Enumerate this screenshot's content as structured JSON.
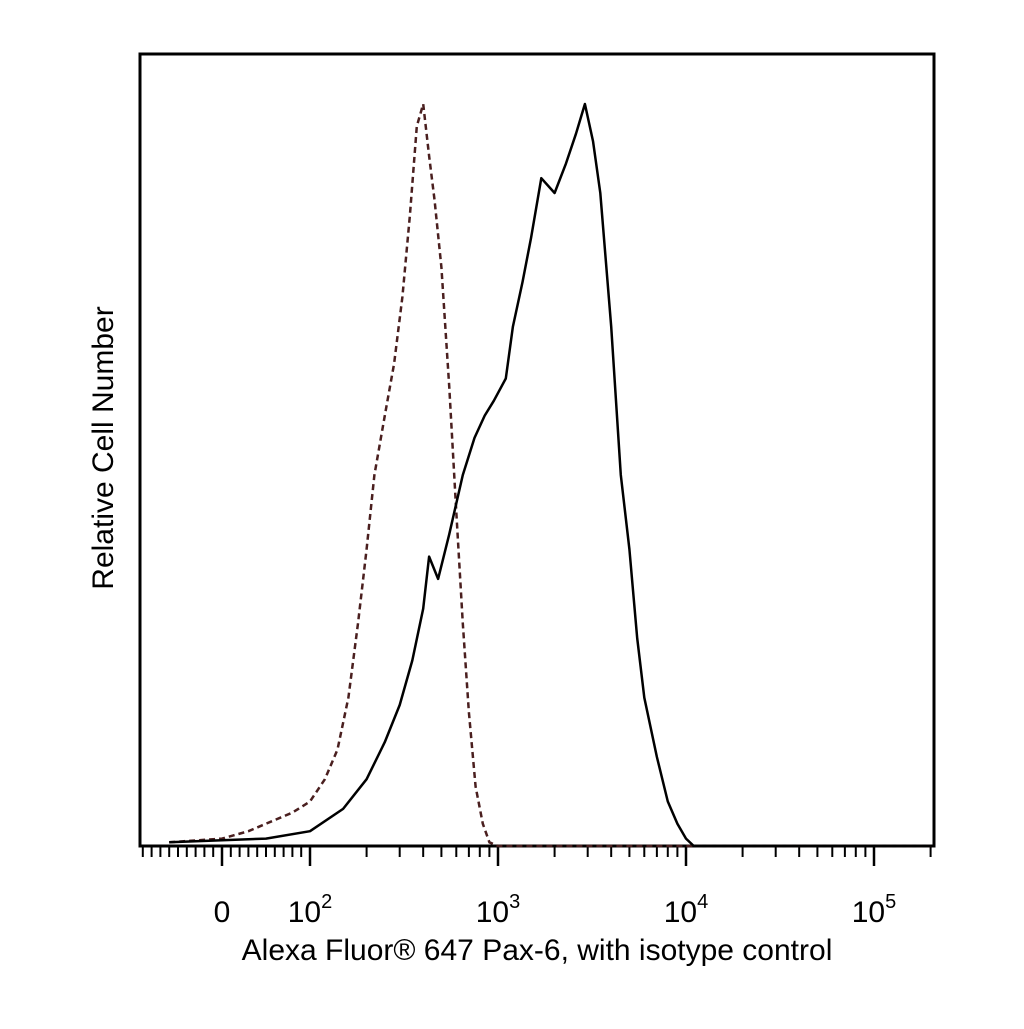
{
  "chart_data": {
    "type": "line",
    "title": "",
    "xlabel": "Alexa Fluor® 647 Pax-6, with isotype control",
    "ylabel": "Relative Cell Number",
    "x_scale": "biexponential (log above 10^2)",
    "xlim": [
      -100,
      250000
    ],
    "ylim": [
      0,
      100
    ],
    "grid": false,
    "legend": "none",
    "x_tick_labels": [
      {
        "value": 0,
        "base": "0",
        "exp": ""
      },
      {
        "value": 100,
        "base": "10",
        "exp": "2"
      },
      {
        "value": 1000,
        "base": "10",
        "exp": "3"
      },
      {
        "value": 10000,
        "base": "10",
        "exp": "4"
      },
      {
        "value": 100000,
        "base": "10",
        "exp": "5"
      }
    ],
    "series": [
      {
        "style": "dashed",
        "color": "#4a1f1f",
        "points": [
          [
            -60,
            0.5
          ],
          [
            0,
            1
          ],
          [
            30,
            2
          ],
          [
            60,
            3.5
          ],
          [
            80,
            4.5
          ],
          [
            100,
            6
          ],
          [
            120,
            9
          ],
          [
            140,
            13
          ],
          [
            160,
            20
          ],
          [
            180,
            30
          ],
          [
            200,
            40
          ],
          [
            220,
            50
          ],
          [
            250,
            58
          ],
          [
            280,
            65
          ],
          [
            310,
            74
          ],
          [
            340,
            85
          ],
          [
            370,
            97
          ],
          [
            400,
            100
          ],
          [
            430,
            93
          ],
          [
            460,
            87
          ],
          [
            500,
            78
          ],
          [
            550,
            62
          ],
          [
            600,
            45
          ],
          [
            650,
            30
          ],
          [
            700,
            18
          ],
          [
            760,
            8
          ],
          [
            830,
            3
          ],
          [
            900,
            0.5
          ],
          [
            1000,
            0
          ],
          [
            2000,
            0
          ],
          [
            10000,
            0
          ],
          [
            200000,
            0
          ]
        ]
      },
      {
        "style": "solid",
        "color": "#000000",
        "points": [
          [
            -60,
            0.5
          ],
          [
            50,
            1
          ],
          [
            100,
            2
          ],
          [
            150,
            5
          ],
          [
            200,
            9
          ],
          [
            250,
            14
          ],
          [
            300,
            19
          ],
          [
            350,
            25
          ],
          [
            400,
            32
          ],
          [
            430,
            39
          ],
          [
            480,
            36
          ],
          [
            550,
            42
          ],
          [
            650,
            50
          ],
          [
            750,
            55
          ],
          [
            850,
            58
          ],
          [
            950,
            60
          ],
          [
            1100,
            63
          ],
          [
            1200,
            70
          ],
          [
            1350,
            76
          ],
          [
            1500,
            82
          ],
          [
            1700,
            90
          ],
          [
            2000,
            88
          ],
          [
            2300,
            92
          ],
          [
            2600,
            96
          ],
          [
            2900,
            100
          ],
          [
            3200,
            95
          ],
          [
            3500,
            88
          ],
          [
            4000,
            70
          ],
          [
            4500,
            50
          ],
          [
            5000,
            40
          ],
          [
            5500,
            28
          ],
          [
            6000,
            20
          ],
          [
            7000,
            12
          ],
          [
            8000,
            6
          ],
          [
            9000,
            3
          ],
          [
            10000,
            1
          ],
          [
            11000,
            0
          ],
          [
            20000,
            0
          ],
          [
            200000,
            0
          ]
        ]
      }
    ]
  }
}
